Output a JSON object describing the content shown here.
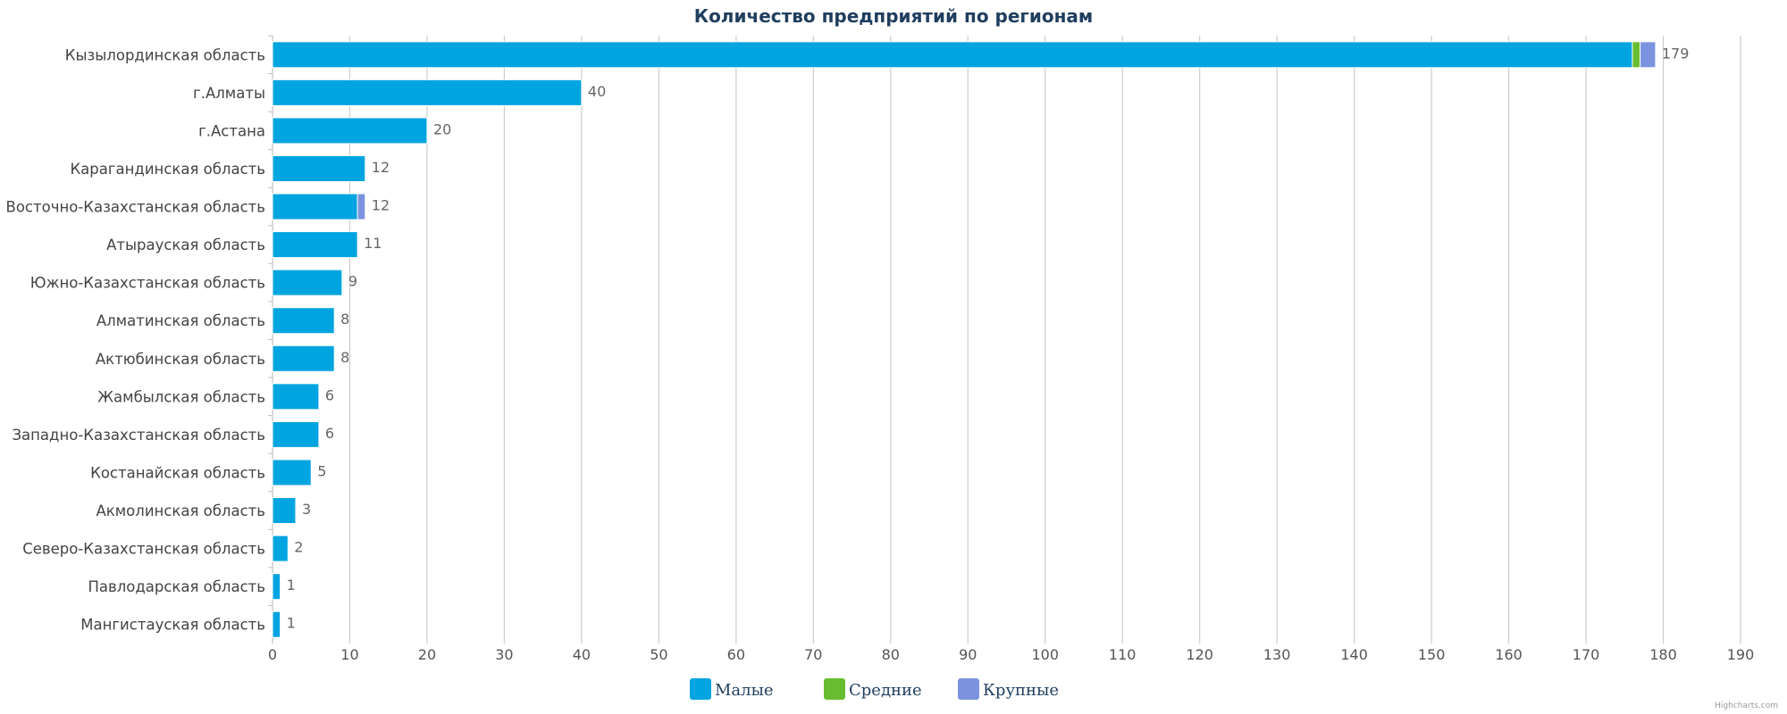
{
  "chart_data": {
    "type": "bar",
    "orientation": "horizontal",
    "stacked": true,
    "title": "Количество предприятий по регионам",
    "categories": [
      "Кызылординская область",
      "г.Алматы",
      "г.Астана",
      "Карагандинская область",
      "Восточно-Казахстанская область",
      "Атырауская область",
      "Южно-Казахстанская область",
      "Алматинская область",
      "Актюбинская область",
      "Жамбылская область",
      "Западно-Казахстанская область",
      "Костанайская область",
      "Акмолинская область",
      "Северо-Казахстанская область",
      "Павлодарская область",
      "Мангистауская область"
    ],
    "series": [
      {
        "name": "Малые",
        "color": "#00a4e0",
        "values": [
          176,
          40,
          20,
          12,
          11,
          11,
          9,
          8,
          8,
          6,
          6,
          5,
          3,
          2,
          1,
          1
        ]
      },
      {
        "name": "Средние",
        "color": "#67bd2f",
        "values": [
          1,
          0,
          0,
          0,
          0,
          0,
          0,
          0,
          0,
          0,
          0,
          0,
          0,
          0,
          0,
          0
        ]
      },
      {
        "name": "Крупные",
        "color": "#7b93df",
        "values": [
          2,
          0,
          0,
          0,
          1,
          0,
          0,
          0,
          0,
          0,
          0,
          0,
          0,
          0,
          0,
          0
        ]
      }
    ],
    "totals": [
      179,
      40,
      20,
      12,
      12,
      11,
      9,
      8,
      8,
      6,
      6,
      5,
      3,
      2,
      1,
      1
    ],
    "xlim": [
      0,
      190
    ],
    "ticks": [
      0,
      10,
      20,
      30,
      40,
      50,
      60,
      70,
      80,
      90,
      100,
      110,
      120,
      130,
      140,
      150,
      160,
      170,
      180,
      190
    ],
    "grid": true,
    "legend_position": "bottom-center",
    "credits": "Highcharts.com"
  }
}
